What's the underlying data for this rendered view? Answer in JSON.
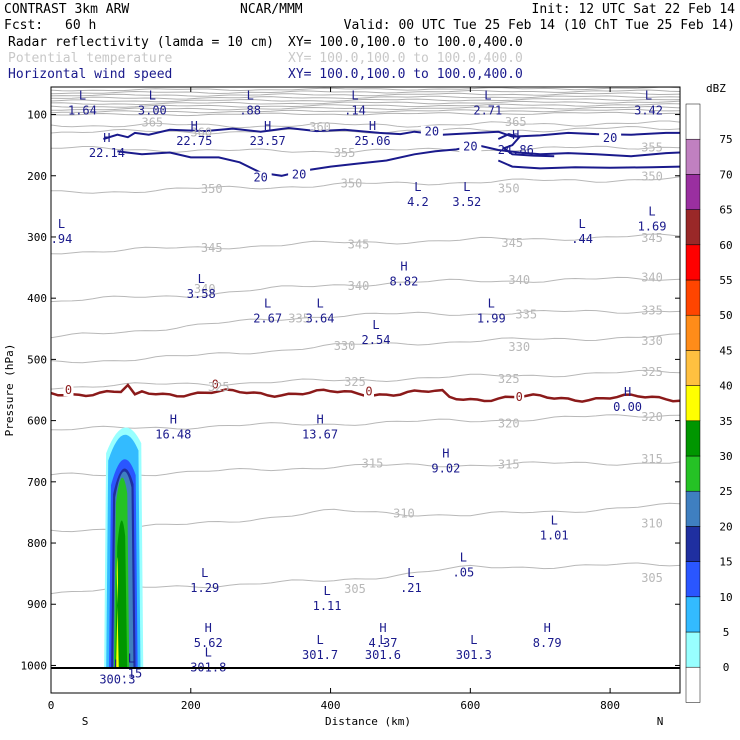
{
  "header": {
    "model": "CONTRAST  3km ARW",
    "org": "NCAR/MMM",
    "init": "Init: 12 UTC Sat 22 Feb 14",
    "fcst_label": "Fcst:",
    "fcst_value": "60 h",
    "valid": "Valid: 00 UTC Tue 25 Feb 14 (10 ChT Tue 25 Feb 14)",
    "fields": [
      {
        "name": "Radar reflectivity (lamda = 10 cm)",
        "xy": "XY= 100.0,100.0 to 100.0,400.0",
        "color": "#000000"
      },
      {
        "name": "Potential temperature",
        "xy": "XY= 100.0,100.0 to 100.0,400.0",
        "color": "#c8c8c8"
      },
      {
        "name": "Horizontal wind speed",
        "xy": "XY= 100.0,100.0 to 100.0,400.0",
        "color": "#1a1a8c"
      }
    ]
  },
  "colorbar": {
    "title": "dBZ",
    "levels": [
      "0",
      "5",
      "10",
      "15",
      "20",
      "25",
      "30",
      "35",
      "40",
      "45",
      "50",
      "55",
      "60",
      "65",
      "70",
      "75"
    ],
    "colors": [
      "#ffffff",
      "#98ffff",
      "#33bbff",
      "#2a56ff",
      "#1f2fa0",
      "#3f7fc0",
      "#25c225",
      "#009600",
      "#ffff00",
      "#ffc040",
      "#ff8c19",
      "#ff4500",
      "#ff0000",
      "#9a2828",
      "#9a2fa0",
      "#c080c0",
      "#ffffff"
    ]
  },
  "chart_data": {
    "type": "cross-section",
    "xlabel": "Distance (km)",
    "ylabel": "Pressure (hPa)",
    "xlim": [
      0,
      900
    ],
    "ylim": [
      1045,
      55
    ],
    "x_ticks": [
      "0",
      "200",
      "400",
      "600",
      "800"
    ],
    "x_tick_values": [
      0,
      200,
      400,
      600,
      800
    ],
    "y_ticks": [
      "100",
      "200",
      "300",
      "400",
      "500",
      "600",
      "700",
      "800",
      "900",
      "1000"
    ],
    "y_tick_values": [
      100,
      200,
      300,
      400,
      500,
      600,
      700,
      800,
      900,
      1000
    ],
    "direction_left": "S",
    "direction_right": "N",
    "theta_contours": [
      {
        "value": 365,
        "levels": [
          [
            0,
            117
          ],
          [
            300,
            118
          ],
          [
            600,
            116
          ],
          [
            900,
            114
          ]
        ]
      },
      {
        "value": 360,
        "levels": [
          [
            0,
            128
          ],
          [
            300,
            128
          ],
          [
            600,
            126
          ],
          [
            900,
            122
          ]
        ]
      },
      {
        "value": 355,
        "levels": [
          [
            0,
            155
          ],
          [
            300,
            160
          ],
          [
            600,
            158
          ],
          [
            900,
            152
          ]
        ]
      },
      {
        "value": 350,
        "levels": [
          [
            0,
            228
          ],
          [
            200,
            222
          ],
          [
            400,
            215
          ],
          [
            600,
            210
          ],
          [
            900,
            205
          ]
        ]
      },
      {
        "value": 345,
        "levels": [
          [
            0,
            325
          ],
          [
            200,
            318
          ],
          [
            400,
            310
          ],
          [
            600,
            305
          ],
          [
            900,
            298
          ]
        ]
      },
      {
        "value": 340,
        "levels": [
          [
            0,
            405
          ],
          [
            200,
            395
          ],
          [
            400,
            378
          ],
          [
            600,
            372
          ],
          [
            900,
            368
          ]
        ]
      },
      {
        "value": 335,
        "levels": [
          [
            0,
            465
          ],
          [
            200,
            445
          ],
          [
            400,
            428
          ],
          [
            600,
            425
          ],
          [
            900,
            420
          ]
        ]
      },
      {
        "value": 330,
        "levels": [
          [
            0,
            505
          ],
          [
            200,
            495
          ],
          [
            400,
            478
          ],
          [
            600,
            470
          ],
          [
            900,
            462
          ]
        ]
      },
      {
        "value": 325,
        "levels": [
          [
            0,
            545
          ],
          [
            200,
            540
          ],
          [
            400,
            535
          ],
          [
            600,
            528
          ],
          [
            900,
            520
          ]
        ]
      },
      {
        "value": 320,
        "levels": [
          [
            0,
            615
          ],
          [
            200,
            610
          ],
          [
            400,
            605
          ],
          [
            600,
            600
          ],
          [
            900,
            590
          ]
        ]
      },
      {
        "value": 315,
        "levels": [
          [
            0,
            690
          ],
          [
            200,
            685
          ],
          [
            400,
            675
          ],
          [
            600,
            672
          ],
          [
            900,
            668
          ]
        ]
      },
      {
        "value": 310,
        "levels": [
          [
            0,
            780
          ],
          [
            200,
            770
          ],
          [
            400,
            748
          ],
          [
            600,
            755
          ],
          [
            900,
            738
          ]
        ]
      },
      {
        "value": 305,
        "levels": [
          [
            0,
            880
          ],
          [
            200,
            870
          ],
          [
            400,
            862
          ],
          [
            600,
            840
          ],
          [
            900,
            835
          ]
        ]
      }
    ],
    "theta_labels": [
      {
        "text": "365",
        "x": 145,
        "p": 113
      },
      {
        "text": "360",
        "x": 215,
        "p": 129
      },
      {
        "text": "360",
        "x": 385,
        "p": 120
      },
      {
        "text": "365",
        "x": 665,
        "p": 112
      },
      {
        "text": "355",
        "x": 420,
        "p": 163
      },
      {
        "text": "355",
        "x": 860,
        "p": 154
      },
      {
        "text": "350",
        "x": 230,
        "p": 222
      },
      {
        "text": "350",
        "x": 430,
        "p": 213
      },
      {
        "text": "350",
        "x": 655,
        "p": 221
      },
      {
        "text": "350",
        "x": 860,
        "p": 201
      },
      {
        "text": "345",
        "x": 230,
        "p": 318
      },
      {
        "text": "345",
        "x": 440,
        "p": 312
      },
      {
        "text": "345",
        "x": 660,
        "p": 310
      },
      {
        "text": "345",
        "x": 860,
        "p": 302
      },
      {
        "text": "340",
        "x": 220,
        "p": 385
      },
      {
        "text": "340",
        "x": 440,
        "p": 380
      },
      {
        "text": "340",
        "x": 670,
        "p": 370
      },
      {
        "text": "340",
        "x": 860,
        "p": 366
      },
      {
        "text": "335",
        "x": 355,
        "p": 433
      },
      {
        "text": "335",
        "x": 680,
        "p": 427
      },
      {
        "text": "335",
        "x": 860,
        "p": 420
      },
      {
        "text": "330",
        "x": 420,
        "p": 478
      },
      {
        "text": "330",
        "x": 670,
        "p": 480
      },
      {
        "text": "330",
        "x": 860,
        "p": 470
      },
      {
        "text": "325",
        "x": 240,
        "p": 545
      },
      {
        "text": "325",
        "x": 435,
        "p": 537
      },
      {
        "text": "325",
        "x": 655,
        "p": 532
      },
      {
        "text": "325",
        "x": 860,
        "p": 521
      },
      {
        "text": "320",
        "x": 655,
        "p": 605
      },
      {
        "text": "320",
        "x": 860,
        "p": 594
      },
      {
        "text": "315",
        "x": 460,
        "p": 670
      },
      {
        "text": "315",
        "x": 655,
        "p": 672
      },
      {
        "text": "315",
        "x": 860,
        "p": 663
      },
      {
        "text": "310",
        "x": 505,
        "p": 752
      },
      {
        "text": "310",
        "x": 860,
        "p": 768
      },
      {
        "text": "305",
        "x": 435,
        "p": 875
      },
      {
        "text": "305",
        "x": 860,
        "p": 857
      }
    ],
    "freezing_level": {
      "label": "0",
      "p_mean": 555
    },
    "wind_speed_contours": [
      {
        "value": 20,
        "label": "20"
      }
    ],
    "extrema": [
      {
        "type": "L",
        "value": "1.64",
        "x": 45,
        "p": 80
      },
      {
        "type": "L",
        "value": "3.00",
        "x": 145,
        "p": 80
      },
      {
        "type": "L",
        "value": ".88",
        "x": 285,
        "p": 80
      },
      {
        "type": "L",
        "value": ".14",
        "x": 435,
        "p": 80
      },
      {
        "type": "L",
        "value": "2.71",
        "x": 625,
        "p": 80
      },
      {
        "type": "L",
        "value": "3.42",
        "x": 855,
        "p": 80
      },
      {
        "type": "H",
        "value": "22.14",
        "x": 80,
        "p": 150
      },
      {
        "type": "H",
        "value": "22.75",
        "x": 205,
        "p": 130
      },
      {
        "type": "H",
        "value": "23.57",
        "x": 310,
        "p": 130
      },
      {
        "type": "H",
        "value": "25.06",
        "x": 460,
        "p": 130
      },
      {
        "type": "H",
        "value": "24.86",
        "x": 665,
        "p": 145
      },
      {
        "type": "L",
        "value": "4.2",
        "x": 525,
        "p": 230
      },
      {
        "type": "L",
        "value": "3.52",
        "x": 595,
        "p": 230
      },
      {
        "type": "L",
        "value": ".94",
        "x": 15,
        "p": 290
      },
      {
        "type": "L",
        "value": "1.69",
        "x": 860,
        "p": 270
      },
      {
        "type": "L",
        "value": ".44",
        "x": 760,
        "p": 290
      },
      {
        "type": "H",
        "value": "8.82",
        "x": 505,
        "p": 360
      },
      {
        "type": "L",
        "value": "3.58",
        "x": 215,
        "p": 380
      },
      {
        "type": "L",
        "value": "2.67",
        "x": 310,
        "p": 420
      },
      {
        "type": "L",
        "value": "3.64",
        "x": 385,
        "p": 420
      },
      {
        "type": "L",
        "value": "1.99",
        "x": 630,
        "p": 420
      },
      {
        "type": "L",
        "value": "2.54",
        "x": 465,
        "p": 455
      },
      {
        "type": "H",
        "value": "0.00",
        "x": 825,
        "p": 565
      },
      {
        "type": "H",
        "value": "16.48",
        "x": 175,
        "p": 610
      },
      {
        "type": "H",
        "value": "13.67",
        "x": 385,
        "p": 610
      },
      {
        "type": "H",
        "value": "9.02",
        "x": 565,
        "p": 665
      },
      {
        "type": "L",
        "value": "1.01",
        "x": 720,
        "p": 775
      },
      {
        "type": "L",
        "value": ".05",
        "x": 590,
        "p": 835
      },
      {
        "type": "L",
        "value": "1.29",
        "x": 220,
        "p": 860
      },
      {
        "type": "L",
        "value": ".21",
        "x": 515,
        "p": 860
      },
      {
        "type": "L",
        "value": "1.11",
        "x": 395,
        "p": 890
      },
      {
        "type": "H",
        "value": "5.62",
        "x": 225,
        "p": 950
      },
      {
        "type": "H",
        "value": "4.37",
        "x": 475,
        "p": 950
      },
      {
        "type": "H",
        "value": "8.79",
        "x": 710,
        "p": 950
      },
      {
        "type": "L",
        "value": "301.7",
        "x": 385,
        "p": 970
      },
      {
        "type": "L",
        "value": "301.6",
        "x": 475,
        "p": 970
      },
      {
        "type": "L",
        "value": "301.3",
        "x": 605,
        "p": 970
      },
      {
        "type": "L",
        "value": "301.8",
        "x": 225,
        "p": 990
      },
      {
        "type": "L",
        "value": ".15",
        "x": 115,
        "p": 1000
      },
      {
        "type": "L",
        "value": "300.3",
        "x": 95,
        "p": 1010
      }
    ],
    "reflectivity_column": {
      "x_range": [
        80,
        125
      ],
      "p_top": 590,
      "p_bottom": 1005,
      "max_dbz": 35
    }
  }
}
